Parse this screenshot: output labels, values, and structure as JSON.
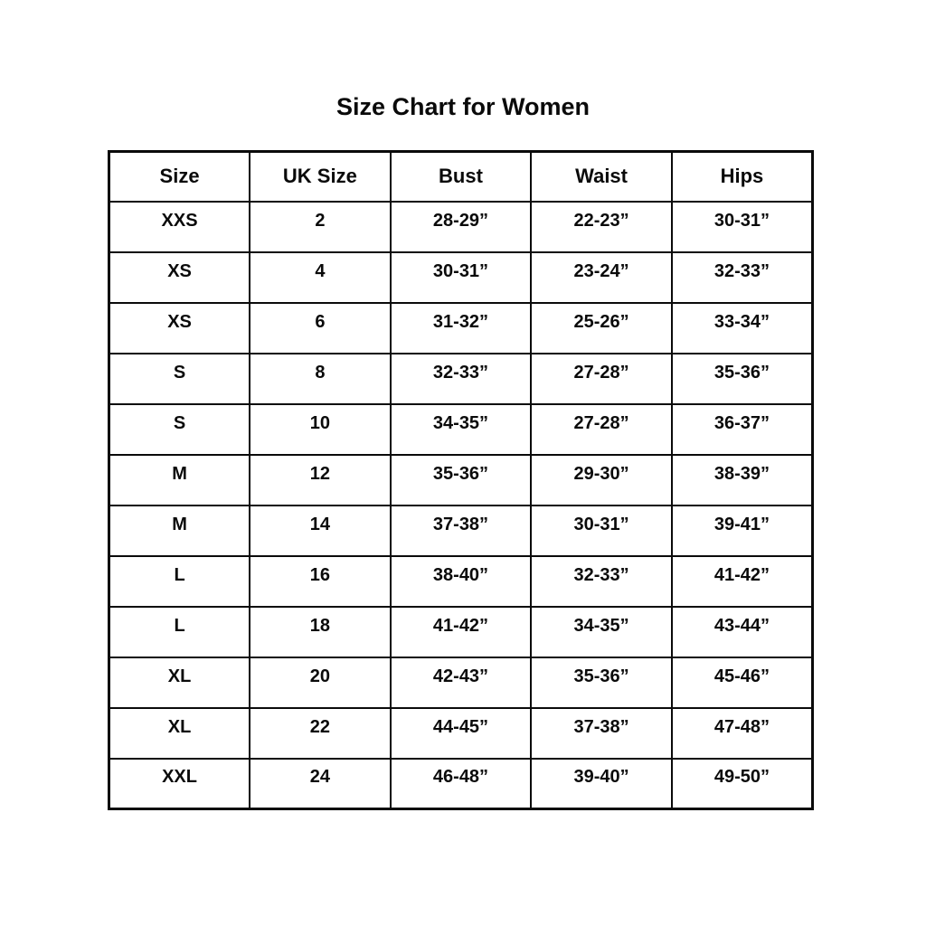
{
  "title": "Size Chart for Women",
  "chart_data": {
    "type": "table",
    "title": "Size Chart for Women",
    "columns": [
      "Size",
      "UK Size",
      "Bust",
      "Waist",
      "Hips"
    ],
    "rows": [
      [
        "XXS",
        "2",
        "28-29”",
        "22-23”",
        "30-31”"
      ],
      [
        "XS",
        "4",
        "30-31”",
        "23-24”",
        "32-33”"
      ],
      [
        "XS",
        "6",
        "31-32”",
        "25-26”",
        "33-34”"
      ],
      [
        "S",
        "8",
        "32-33”",
        "27-28”",
        "35-36”"
      ],
      [
        "S",
        "10",
        "34-35”",
        "27-28”",
        "36-37”"
      ],
      [
        "M",
        "12",
        "35-36”",
        "29-30”",
        "38-39”"
      ],
      [
        "M",
        "14",
        "37-38”",
        "30-31”",
        "39-41”"
      ],
      [
        "L",
        "16",
        "38-40”",
        "32-33”",
        "41-42”"
      ],
      [
        "L",
        "18",
        "41-42”",
        "34-35”",
        "43-44”"
      ],
      [
        "XL",
        "20",
        "42-43”",
        "35-36”",
        "45-46”"
      ],
      [
        "XL",
        "22",
        "44-45”",
        "37-38”",
        "47-48”"
      ],
      [
        "XXL",
        "24",
        "46-48”",
        "39-40”",
        "49-50”"
      ]
    ],
    "layout": {
      "grid": "on",
      "border_color": "#0a0a0a",
      "background": "#ffffff",
      "text_color": "#0a0a0a"
    }
  }
}
